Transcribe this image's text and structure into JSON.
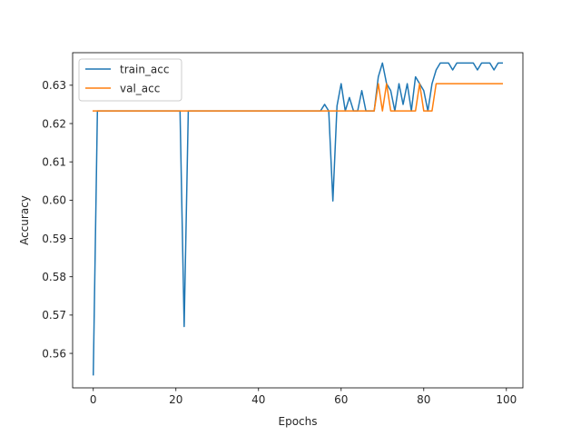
{
  "chart_data": {
    "type": "line",
    "title": "",
    "xlabel": "Epochs",
    "ylabel": "Accuracy",
    "xlim": [
      -5,
      104
    ],
    "ylim": [
      0.551,
      0.6385
    ],
    "xticks": [
      0,
      20,
      40,
      60,
      80,
      100
    ],
    "yticks": [
      0.56,
      0.57,
      0.58,
      0.59,
      0.6,
      0.61,
      0.62,
      0.63
    ],
    "ytick_labels": [
      "0.56",
      "0.57",
      "0.58",
      "0.59",
      "0.60",
      "0.61",
      "0.62",
      "0.63"
    ],
    "grid": false,
    "legend_position": "upper-left",
    "x": [
      0,
      1,
      2,
      3,
      4,
      5,
      6,
      7,
      8,
      9,
      10,
      11,
      12,
      13,
      14,
      15,
      16,
      17,
      18,
      19,
      20,
      21,
      22,
      23,
      24,
      25,
      26,
      27,
      28,
      29,
      30,
      31,
      32,
      33,
      34,
      35,
      36,
      37,
      38,
      39,
      40,
      41,
      42,
      43,
      44,
      45,
      46,
      47,
      48,
      49,
      50,
      51,
      52,
      53,
      54,
      55,
      56,
      57,
      58,
      59,
      60,
      61,
      62,
      63,
      64,
      65,
      66,
      67,
      68,
      69,
      70,
      71,
      72,
      73,
      74,
      75,
      76,
      77,
      78,
      79,
      80,
      81,
      82,
      83,
      84,
      85,
      86,
      87,
      88,
      89,
      90,
      91,
      92,
      93,
      94,
      95,
      96,
      97,
      98,
      99
    ],
    "series": [
      {
        "name": "train_acc",
        "color": "#1f77b4",
        "values": [
          0.5544,
          0.6233,
          0.6233,
          0.6233,
          0.6233,
          0.6233,
          0.6233,
          0.6233,
          0.6233,
          0.6233,
          0.6233,
          0.6233,
          0.6233,
          0.6233,
          0.6233,
          0.6233,
          0.6233,
          0.6233,
          0.6233,
          0.6233,
          0.6233,
          0.6233,
          0.567,
          0.6233,
          0.6233,
          0.6233,
          0.6233,
          0.6233,
          0.6233,
          0.6233,
          0.6233,
          0.6233,
          0.6233,
          0.6233,
          0.6233,
          0.6233,
          0.6233,
          0.6233,
          0.6233,
          0.6233,
          0.6233,
          0.6233,
          0.6233,
          0.6233,
          0.6233,
          0.6233,
          0.6233,
          0.6233,
          0.6233,
          0.6233,
          0.6233,
          0.6233,
          0.6233,
          0.6233,
          0.6233,
          0.6233,
          0.625,
          0.6233,
          0.5998,
          0.6246,
          0.6304,
          0.6233,
          0.6268,
          0.6233,
          0.6233,
          0.6286,
          0.6233,
          0.6233,
          0.6233,
          0.6322,
          0.6358,
          0.6304,
          0.6286,
          0.6233,
          0.6304,
          0.625,
          0.6304,
          0.6233,
          0.6322,
          0.6304,
          0.6286,
          0.6233,
          0.6304,
          0.634,
          0.6358,
          0.6358,
          0.6358,
          0.634,
          0.6358,
          0.6358,
          0.6358,
          0.6358,
          0.6358,
          0.634,
          0.6358,
          0.6358,
          0.6358,
          0.634,
          0.6358,
          0.6358
        ]
      },
      {
        "name": "val_acc",
        "color": "#ff7f0e",
        "values": [
          0.6233,
          0.6233,
          0.6233,
          0.6233,
          0.6233,
          0.6233,
          0.6233,
          0.6233,
          0.6233,
          0.6233,
          0.6233,
          0.6233,
          0.6233,
          0.6233,
          0.6233,
          0.6233,
          0.6233,
          0.6233,
          0.6233,
          0.6233,
          0.6233,
          0.6233,
          0.6233,
          0.6233,
          0.6233,
          0.6233,
          0.6233,
          0.6233,
          0.6233,
          0.6233,
          0.6233,
          0.6233,
          0.6233,
          0.6233,
          0.6233,
          0.6233,
          0.6233,
          0.6233,
          0.6233,
          0.6233,
          0.6233,
          0.6233,
          0.6233,
          0.6233,
          0.6233,
          0.6233,
          0.6233,
          0.6233,
          0.6233,
          0.6233,
          0.6233,
          0.6233,
          0.6233,
          0.6233,
          0.6233,
          0.6233,
          0.6233,
          0.6233,
          0.6233,
          0.6233,
          0.6233,
          0.6233,
          0.6233,
          0.6233,
          0.6233,
          0.6233,
          0.6233,
          0.6233,
          0.6233,
          0.6304,
          0.6233,
          0.6304,
          0.6233,
          0.6233,
          0.6233,
          0.6233,
          0.6233,
          0.6233,
          0.6233,
          0.6304,
          0.6233,
          0.6233,
          0.6233,
          0.6304,
          0.6304,
          0.6304,
          0.6304,
          0.6304,
          0.6304,
          0.6304,
          0.6304,
          0.6304,
          0.6304,
          0.6304,
          0.6304,
          0.6304,
          0.6304,
          0.6304,
          0.6304,
          0.6304
        ]
      }
    ]
  }
}
